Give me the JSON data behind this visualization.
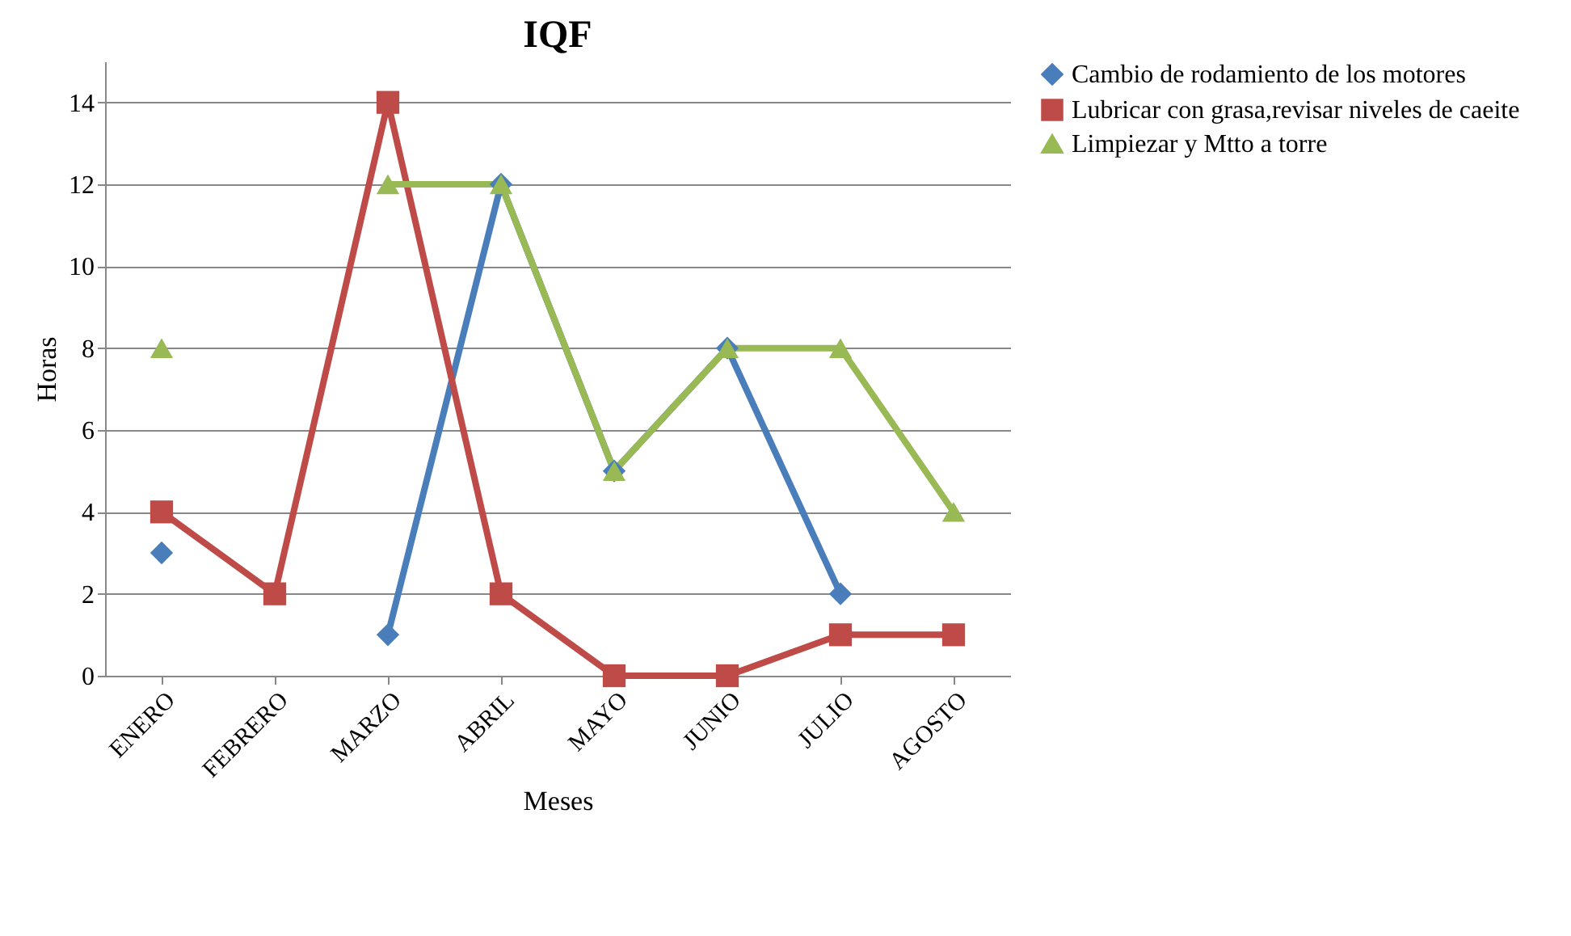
{
  "chart_data": {
    "type": "line",
    "title": "IQF",
    "xlabel": "Meses",
    "ylabel": "Horas",
    "categories": [
      "ENERO",
      "FEBRERO",
      "MARZO",
      "ABRIL",
      "MAYO",
      "JUNIO",
      "JULIO",
      "AGOSTO"
    ],
    "series": [
      {
        "name": "Cambio de rodamiento de los motores",
        "color": "#4a7ebb",
        "marker": "diamond",
        "values": [
          3,
          null,
          1,
          12,
          5,
          8,
          2,
          null
        ]
      },
      {
        "name": "Lubricar con grasa,revisar niveles de caeite",
        "color": "#be4b48",
        "marker": "square",
        "values": [
          4,
          2,
          14,
          2,
          0,
          0,
          1,
          1
        ]
      },
      {
        "name": "Limpiezar y Mtto a torre",
        "color": "#98b954",
        "marker": "triangle",
        "values": [
          8,
          null,
          12,
          12,
          5,
          8,
          8,
          4
        ]
      }
    ],
    "ylim": [
      0,
      15
    ],
    "yticks": [
      0,
      2,
      4,
      6,
      8,
      10,
      12,
      14
    ],
    "grid": "y",
    "legend": "right",
    "line_style": "solid"
  }
}
